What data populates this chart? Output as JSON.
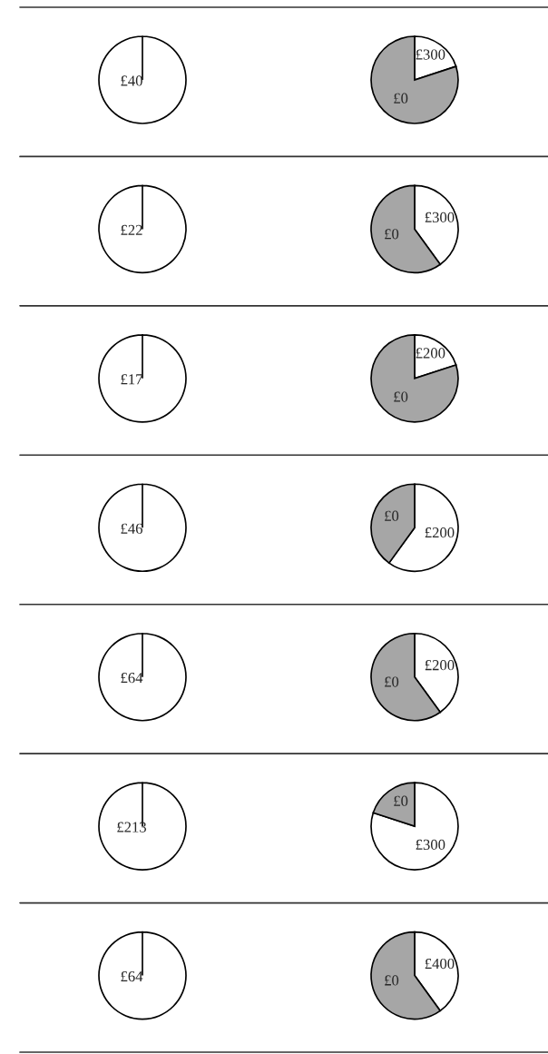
{
  "chart_data": [
    {
      "type": "pie",
      "categories": [
        "£40"
      ],
      "values": [
        100
      ],
      "colors": [
        "#ffffff"
      ]
    },
    {
      "type": "pie",
      "categories": [
        "£300",
        "£0"
      ],
      "values": [
        20,
        80
      ],
      "colors": [
        "#ffffff",
        "#a6a6a6"
      ]
    },
    {
      "type": "pie",
      "categories": [
        "£22"
      ],
      "values": [
        100
      ],
      "colors": [
        "#ffffff"
      ]
    },
    {
      "type": "pie",
      "categories": [
        "£300",
        "£0"
      ],
      "values": [
        40,
        60
      ],
      "colors": [
        "#ffffff",
        "#a6a6a6"
      ]
    },
    {
      "type": "pie",
      "categories": [
        "£17"
      ],
      "values": [
        100
      ],
      "colors": [
        "#ffffff"
      ]
    },
    {
      "type": "pie",
      "categories": [
        "£200",
        "£0"
      ],
      "values": [
        20,
        80
      ],
      "colors": [
        "#ffffff",
        "#a6a6a6"
      ]
    },
    {
      "type": "pie",
      "categories": [
        "£46"
      ],
      "values": [
        100
      ],
      "colors": [
        "#ffffff"
      ]
    },
    {
      "type": "pie",
      "categories": [
        "£200",
        "£0"
      ],
      "values": [
        60,
        40
      ],
      "colors": [
        "#ffffff",
        "#a6a6a6"
      ]
    },
    {
      "type": "pie",
      "categories": [
        "£64"
      ],
      "values": [
        100
      ],
      "colors": [
        "#ffffff"
      ]
    },
    {
      "type": "pie",
      "categories": [
        "£200",
        "£0"
      ],
      "values": [
        40,
        60
      ],
      "colors": [
        "#ffffff",
        "#a6a6a6"
      ]
    },
    {
      "type": "pie",
      "categories": [
        "£213"
      ],
      "values": [
        100
      ],
      "colors": [
        "#ffffff"
      ]
    },
    {
      "type": "pie",
      "categories": [
        "£300",
        "£0"
      ],
      "values": [
        80,
        20
      ],
      "colors": [
        "#ffffff",
        "#a6a6a6"
      ]
    },
    {
      "type": "pie",
      "categories": [
        "£64"
      ],
      "values": [
        100
      ],
      "colors": [
        "#ffffff"
      ]
    },
    {
      "type": "pie",
      "categories": [
        "£400",
        "£0"
      ],
      "values": [
        40,
        60
      ],
      "colors": [
        "#ffffff",
        "#a6a6a6"
      ]
    }
  ]
}
